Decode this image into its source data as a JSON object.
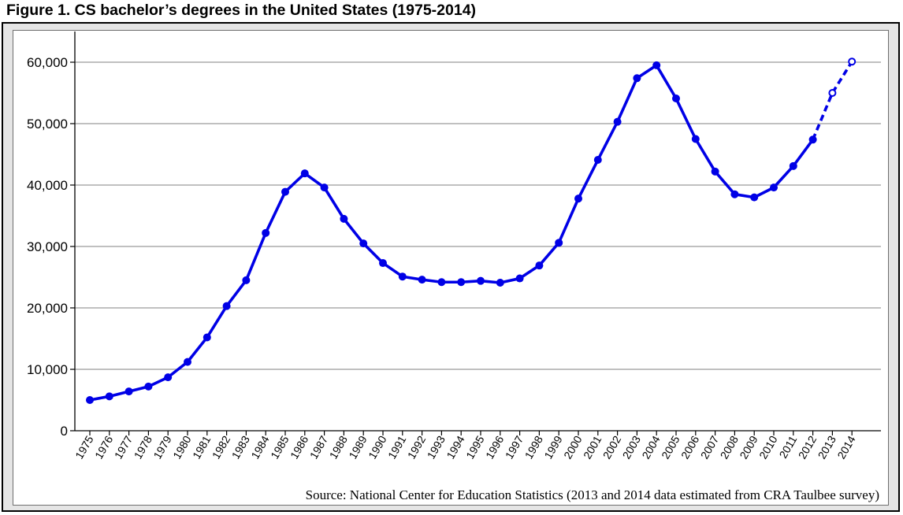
{
  "chart_data": {
    "type": "line",
    "title": "Figure 1. CS bachelor’s degrees in the United States (1975-2014)",
    "source": "Source: National Center for Education Statistics (2013 and 2014 data estimated from CRA Taulbee survey)",
    "x": [
      "1975",
      "1976",
      "1977",
      "1978",
      "1979",
      "1980",
      "1981",
      "1982",
      "1983",
      "1984",
      "1985",
      "1986",
      "1987",
      "1988",
      "1989",
      "1990",
      "1991",
      "1992",
      "1993",
      "1994",
      "1995",
      "1996",
      "1997",
      "1998",
      "1999",
      "2000",
      "2001",
      "2002",
      "2003",
      "2004",
      "2005",
      "2006",
      "2007",
      "2008",
      "2009",
      "2010",
      "2011",
      "2012",
      "2013",
      "2014"
    ],
    "ylim": [
      0,
      65000
    ],
    "yticks": [
      0,
      10000,
      20000,
      30000,
      40000,
      50000,
      60000
    ],
    "ytick_labels": [
      "0",
      "10,000",
      "20,000",
      "30,000",
      "40,000",
      "50,000",
      "60,000"
    ],
    "grid": true,
    "series": [
      {
        "values": [
          5000,
          5600,
          6400,
          7200,
          8700,
          11200,
          15200,
          20300,
          24500,
          32200,
          38900,
          41900,
          39600,
          34500,
          30500,
          27300,
          25100,
          24600,
          24200,
          24200,
          24400,
          24100,
          24800,
          26900,
          30600,
          37800,
          44100,
          50300,
          57400,
          59500,
          54100,
          47500,
          42200,
          38500,
          38000,
          39600,
          43100,
          47400,
          55000,
          60100
        ],
        "estimated_from_index": 38,
        "color": "#0000e6"
      }
    ]
  }
}
